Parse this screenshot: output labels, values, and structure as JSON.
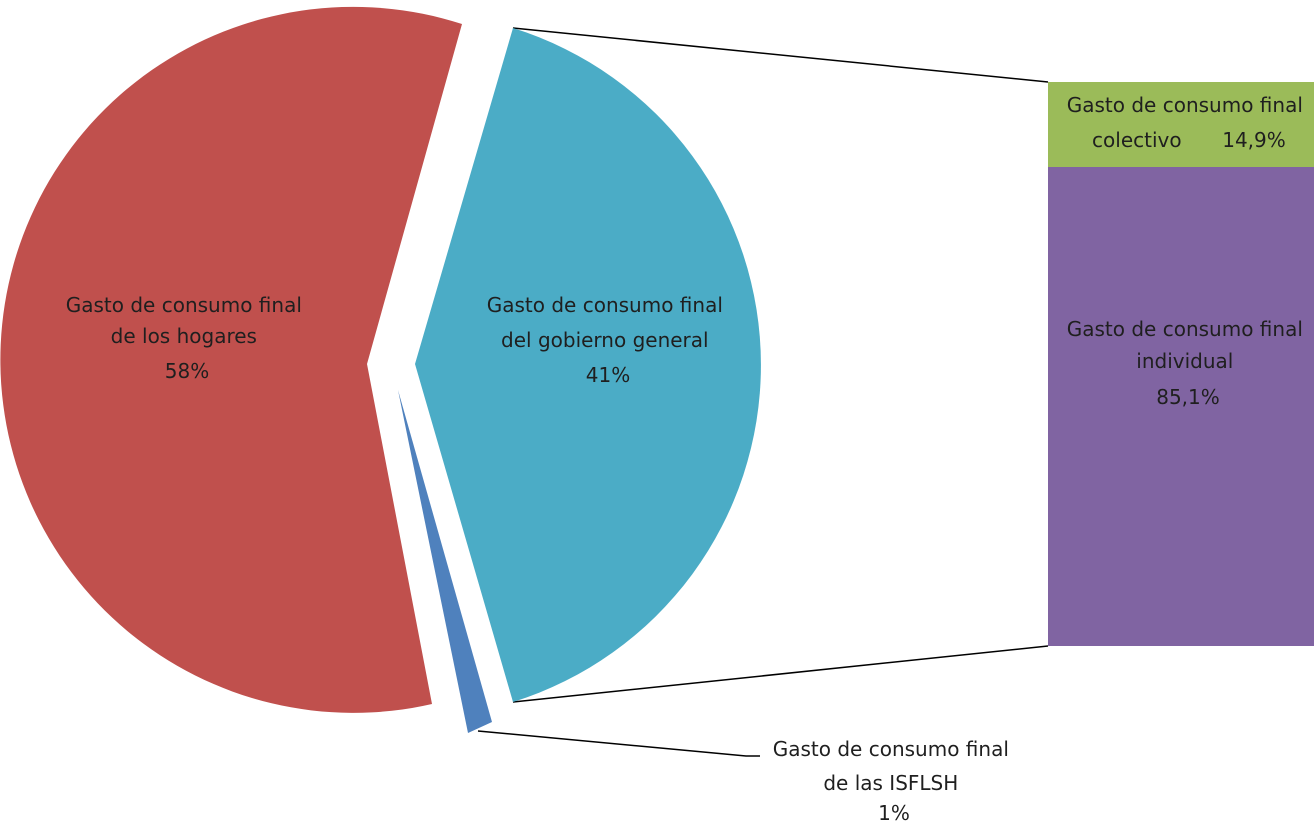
{
  "chart_data": {
    "type": "pie",
    "title": "",
    "slices": [
      {
        "label": [
          "Gasto de consumo final",
          "de los hogares"
        ],
        "value_label": "58%",
        "value": 58,
        "color": "#c0504d"
      },
      {
        "label": [
          "Gasto de consumo final",
          "del gobierno general"
        ],
        "value_label": "41%",
        "value": 41,
        "color": "#4bacc6"
      },
      {
        "label": [
          "Gasto de consumo final",
          "de las ISFLSH"
        ],
        "value_label": "1%",
        "value": 1,
        "color": "#4f81bd"
      }
    ],
    "breakdown": {
      "of_slice": "Gasto de consumo final del gobierno general",
      "type": "stacked-bar",
      "segments": [
        {
          "label": [
            "Gasto de consumo final",
            "colectivo"
          ],
          "value_label": "14,9%",
          "value": 14.9,
          "color": "#9bbb59"
        },
        {
          "label": [
            "Gasto de consumo final",
            "individual"
          ],
          "value_label": "85,1%",
          "value": 85.1,
          "color": "#8064a2"
        }
      ]
    }
  }
}
